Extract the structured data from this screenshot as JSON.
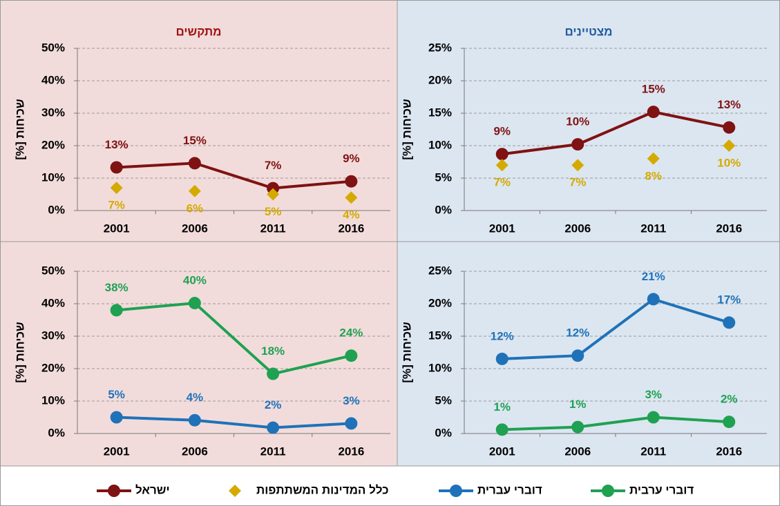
{
  "chart_data": [
    {
      "type": "line",
      "title": "מתקשים",
      "y_label": "שכיחות [%]",
      "categories": [
        "2001",
        "2006",
        "2011",
        "2016"
      ],
      "ylim": [
        0,
        50
      ],
      "yticks": [
        {
          "value": 0,
          "label": "0%"
        },
        {
          "value": 10,
          "label": "10%"
        },
        {
          "value": 20,
          "label": "20%"
        },
        {
          "value": 30,
          "label": "30%"
        },
        {
          "value": 40,
          "label": "40%"
        },
        {
          "value": 50,
          "label": "50%"
        }
      ],
      "grid": true,
      "series": [
        {
          "name": "ישראל",
          "color": "#7f1212",
          "marker": "circle",
          "values": [
            13.3,
            14.6,
            6.9,
            9.0
          ],
          "value_labels": [
            "13%",
            "15%",
            "7%",
            "9%"
          ],
          "label_position": "above"
        },
        {
          "name": "כלל המדינות המשתתפות",
          "color": "#d4aa00",
          "marker": "diamond",
          "style": "markers",
          "values": [
            7,
            6,
            5,
            4
          ],
          "value_labels": [
            "7%",
            "6%",
            "5%",
            "4%"
          ],
          "label_position": "below"
        }
      ]
    },
    {
      "type": "line",
      "title": "מצטיינים",
      "y_label": "שכיחות [%]",
      "categories": [
        "2001",
        "2006",
        "2011",
        "2016"
      ],
      "ylim": [
        0,
        25
      ],
      "yticks": [
        {
          "value": 0,
          "label": "0%"
        },
        {
          "value": 5,
          "label": "5%"
        },
        {
          "value": 10,
          "label": "10%"
        },
        {
          "value": 15,
          "label": "15%"
        },
        {
          "value": 20,
          "label": "20%"
        },
        {
          "value": 25,
          "label": "25%"
        }
      ],
      "grid": true,
      "series": [
        {
          "name": "ישראל",
          "color": "#7f1212",
          "marker": "circle",
          "values": [
            8.7,
            10.2,
            15.2,
            12.8
          ],
          "value_labels": [
            "9%",
            "10%",
            "15%",
            "13%"
          ],
          "label_position": "above"
        },
        {
          "name": "כלל המדינות המשתתפות",
          "color": "#d4aa00",
          "marker": "diamond",
          "style": "markers",
          "values": [
            7,
            7,
            8,
            10
          ],
          "value_labels": [
            "7%",
            "7%",
            "8%",
            "10%"
          ],
          "label_position": "below"
        }
      ]
    },
    {
      "type": "line",
      "y_label": "שכיחות [%]",
      "categories": [
        "2001",
        "2006",
        "2011",
        "2016"
      ],
      "ylim": [
        0,
        50
      ],
      "yticks": [
        {
          "value": 0,
          "label": "0%"
        },
        {
          "value": 10,
          "label": "10%"
        },
        {
          "value": 20,
          "label": "20%"
        },
        {
          "value": 30,
          "label": "30%"
        },
        {
          "value": 40,
          "label": "40%"
        },
        {
          "value": 50,
          "label": "50%"
        }
      ],
      "grid": true,
      "series": [
        {
          "name": "דוברי עברית",
          "color": "#1f72b8",
          "marker": "circle",
          "values": [
            5.0,
            4.1,
            1.8,
            3.1
          ],
          "value_labels": [
            "5%",
            "4%",
            "2%",
            "3%"
          ],
          "label_position": "above"
        },
        {
          "name": "דוברי ערבית",
          "color": "#1fa152",
          "marker": "circle",
          "values": [
            38.0,
            40.2,
            18.4,
            24.0
          ],
          "value_labels": [
            "38%",
            "40%",
            "18%",
            "24%"
          ],
          "label_position": "above"
        }
      ]
    },
    {
      "type": "line",
      "y_label": "שכיחות [%]",
      "categories": [
        "2001",
        "2006",
        "2011",
        "2016"
      ],
      "ylim": [
        0,
        25
      ],
      "yticks": [
        {
          "value": 0,
          "label": "0%"
        },
        {
          "value": 5,
          "label": "5%"
        },
        {
          "value": 10,
          "label": "10%"
        },
        {
          "value": 15,
          "label": "15%"
        },
        {
          "value": 20,
          "label": "20%"
        },
        {
          "value": 25,
          "label": "25%"
        }
      ],
      "grid": true,
      "series": [
        {
          "name": "דוברי עברית",
          "color": "#1f72b8",
          "marker": "circle",
          "values": [
            11.5,
            12.0,
            20.7,
            17.1
          ],
          "value_labels": [
            "12%",
            "12%",
            "21%",
            "17%"
          ],
          "label_position": "above"
        },
        {
          "name": "דוברי ערבית",
          "color": "#1fa152",
          "marker": "circle",
          "values": [
            0.6,
            1.0,
            2.5,
            1.8
          ],
          "value_labels": [
            "1%",
            "1%",
            "3%",
            "2%"
          ],
          "label_position": "above"
        }
      ]
    }
  ]
}
